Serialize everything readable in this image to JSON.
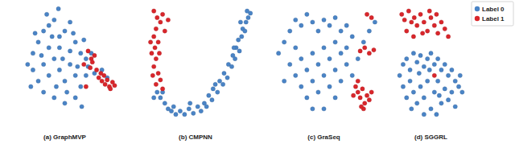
{
  "chart_data": [
    {
      "type": "scatter",
      "title": "(a) GraphMVP",
      "tick_labels": false,
      "xlim": [
        -5,
        105
      ],
      "ylim": [
        -5,
        105
      ],
      "series": [
        {
          "name": "Label 0",
          "color": "#4a84c6",
          "marker": "circle",
          "x": [
            20,
            25,
            30,
            35,
            40,
            45,
            50,
            55,
            60,
            65,
            70,
            75,
            30,
            35,
            40,
            45,
            50,
            55,
            60,
            25,
            30,
            40,
            50,
            60,
            65,
            70,
            15,
            20,
            45,
            55,
            35,
            42,
            52,
            62,
            48,
            38,
            28,
            58,
            68,
            72,
            22,
            33,
            44,
            78,
            85,
            90,
            18,
            66
          ],
          "values": [
            60,
            70,
            80,
            85,
            90,
            75,
            80,
            88,
            70,
            60,
            55,
            60,
            50,
            40,
            55,
            45,
            35,
            50,
            40,
            35,
            25,
            20,
            15,
            20,
            30,
            40,
            50,
            45,
            65,
            62,
            65,
            30,
            25,
            48,
            55,
            75,
            58,
            78,
            72,
            48,
            78,
            95,
            100,
            42,
            45,
            38,
            30,
            12
          ]
        },
        {
          "name": "Label 1",
          "color": "#d9262b",
          "marker": "circle",
          "x": [
            82,
            85,
            88,
            90,
            92,
            95,
            87,
            93,
            97,
            80,
            75,
            72,
            78,
            68,
            74,
            84,
            70,
            76
          ],
          "values": [
            38,
            35,
            32,
            36,
            30,
            34,
            40,
            28,
            31,
            45,
            55,
            62,
            58,
            50,
            47,
            42,
            30,
            52
          ]
        }
      ]
    },
    {
      "type": "scatter",
      "title": "(b) CMPNN",
      "tick_labels": false,
      "xlim": [
        -5,
        105
      ],
      "ylim": [
        -5,
        105
      ],
      "series": [
        {
          "name": "Label 0",
          "color": "#4a84c6",
          "marker": "circle",
          "x": [
            15,
            18,
            22,
            25,
            28,
            32,
            36,
            40,
            44,
            48,
            52,
            55,
            58,
            60,
            62,
            65,
            66,
            70,
            72,
            75,
            76,
            79,
            80,
            83,
            84,
            86,
            87,
            90,
            89,
            92,
            93,
            95,
            96,
            98,
            100,
            97,
            20,
            30,
            45,
            68,
            85,
            91,
            12
          ],
          "values": [
            25,
            20,
            15,
            10,
            8,
            5,
            8,
            5,
            10,
            6,
            12,
            8,
            15,
            12,
            22,
            18,
            28,
            25,
            35,
            32,
            42,
            38,
            50,
            48,
            58,
            55,
            65,
            62,
            72,
            75,
            82,
            80,
            88,
            92,
            96,
            98,
            25,
            12,
            15,
            32,
            65,
            88,
            20
          ]
        },
        {
          "name": "Label 1",
          "color": "#d9262b",
          "marker": "circle",
          "x": [
            12,
            15,
            20,
            18,
            14,
            12,
            16,
            13,
            10,
            14,
            12,
            16,
            18,
            14,
            20,
            22,
            9,
            17,
            11,
            25
          ],
          "values": [
            98,
            92,
            95,
            88,
            82,
            75,
            70,
            65,
            60,
            55,
            48,
            42,
            36,
            32,
            28,
            80,
            70,
            60,
            40,
            90
          ]
        }
      ]
    },
    {
      "type": "scatter",
      "title": "(c) GraSeq",
      "tick_labels": false,
      "xlim": [
        -5,
        105
      ],
      "ylim": [
        -5,
        105
      ],
      "series": [
        {
          "name": "Label 0",
          "color": "#4a84c6",
          "marker": "circle",
          "x": [
            10,
            15,
            20,
            25,
            30,
            35,
            40,
            45,
            50,
            55,
            60,
            65,
            70,
            75,
            20,
            25,
            30,
            35,
            40,
            45,
            50,
            55,
            60,
            65,
            70,
            30,
            35,
            40,
            45,
            50,
            55,
            60,
            65,
            70,
            50,
            60,
            40,
            80,
            85,
            90,
            15,
            25,
            75,
            95
          ],
          "values": [
            60,
            70,
            80,
            90,
            85,
            95,
            88,
            80,
            90,
            85,
            92,
            80,
            85,
            75,
            50,
            40,
            55,
            45,
            60,
            50,
            65,
            55,
            70,
            60,
            65,
            30,
            20,
            35,
            25,
            40,
            30,
            45,
            35,
            50,
            10,
            20,
            10,
            55,
            70,
            80,
            35,
            65,
            40,
            88
          ]
        },
        {
          "name": "Label 1",
          "color": "#d9262b",
          "marker": "circle",
          "x": [
            78,
            80,
            82,
            84,
            86,
            88,
            90,
            85,
            92,
            80,
            76,
            82,
            86,
            90,
            94,
            88,
            92,
            83
          ],
          "values": [
            30,
            25,
            20,
            28,
            15,
            22,
            18,
            10,
            25,
            35,
            22,
            62,
            65,
            60,
            63,
            95,
            92,
            12
          ]
        }
      ]
    },
    {
      "type": "scatter",
      "title": "(d) SGGRL",
      "tick_labels": false,
      "legend": "upper right",
      "xlim": [
        -5,
        105
      ],
      "ylim": [
        -5,
        105
      ],
      "series": [
        {
          "name": "Label 0",
          "color": "#4a84c6",
          "marker": "circle",
          "x": [
            5,
            10,
            15,
            20,
            25,
            30,
            35,
            40,
            45,
            50,
            55,
            60,
            65,
            70,
            75,
            80,
            85,
            90,
            95,
            10,
            15,
            20,
            25,
            30,
            35,
            40,
            45,
            50,
            55,
            60,
            65,
            70,
            75,
            80,
            85,
            40,
            58,
            22,
            92,
            33,
            62,
            48
          ],
          "values": [
            40,
            50,
            55,
            45,
            60,
            52,
            58,
            48,
            55,
            60,
            50,
            55,
            45,
            50,
            40,
            45,
            35,
            30,
            25,
            30,
            20,
            35,
            25,
            15,
            30,
            20,
            35,
            10,
            25,
            35,
            15,
            28,
            18,
            25,
            12,
            5,
            5,
            10,
            40,
            42,
            22,
            45
          ]
        },
        {
          "name": "Label 1",
          "color": "#d9262b",
          "marker": "circle",
          "x": [
            8,
            12,
            18,
            22,
            26,
            30,
            35,
            40,
            45,
            50,
            55,
            60,
            65,
            70,
            75,
            15,
            25,
            38,
            48,
            58,
            55
          ],
          "values": [
            95,
            90,
            98,
            88,
            92,
            85,
            95,
            88,
            80,
            92,
            85,
            78,
            88,
            82,
            75,
            80,
            75,
            78,
            98,
            95,
            40
          ]
        }
      ]
    }
  ]
}
